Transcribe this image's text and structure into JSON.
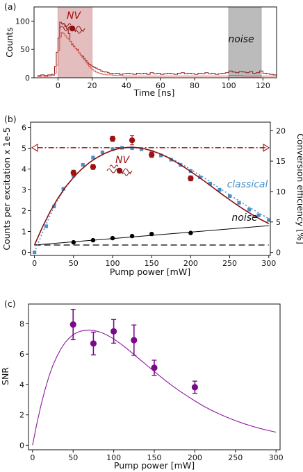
{
  "chart_data": [
    {
      "panel": "(a)",
      "type": "line",
      "xlabel": "Time [ns]",
      "ylabel": "Counts",
      "xlim": [
        -14,
        128
      ],
      "ylim": [
        0,
        125
      ],
      "xticks": [
        0,
        20,
        40,
        60,
        80,
        100,
        120
      ],
      "yticks": [
        0,
        50,
        100
      ],
      "shaded_regions": [
        {
          "label": "NV",
          "x": [
            0,
            20
          ],
          "color": "#d9a3a3"
        },
        {
          "label": "noise",
          "x": [
            100,
            119
          ],
          "color": "#9e9e9e"
        }
      ],
      "series": [
        {
          "color": "#8b1a1a",
          "x": [
            -12,
            -10,
            -8,
            -6,
            -4,
            -2,
            -1,
            0,
            1,
            2,
            3,
            4,
            5,
            6,
            7,
            8,
            9,
            10,
            11,
            12,
            13,
            14,
            15,
            16,
            17,
            18,
            19,
            20,
            21,
            22,
            23,
            24,
            25,
            26,
            27,
            28,
            29,
            30,
            32,
            34,
            36,
            38,
            40,
            42,
            44,
            46,
            48,
            50,
            52,
            54,
            56,
            58,
            60,
            62,
            64,
            66,
            68,
            70,
            72,
            74,
            76,
            78,
            80,
            82,
            84,
            86,
            88,
            90,
            92,
            94,
            96,
            98,
            100,
            102,
            104,
            106,
            108,
            110,
            112,
            114,
            116,
            118,
            120,
            122,
            124,
            126
          ],
          "y": [
            4,
            5,
            4,
            5,
            6,
            20,
            45,
            70,
            98,
            96,
            95,
            90,
            86,
            78,
            64,
            58,
            55,
            52,
            50,
            44,
            40,
            38,
            34,
            30,
            26,
            24,
            22,
            20,
            18,
            17,
            15,
            14,
            12,
            11,
            10,
            10,
            9,
            8,
            7,
            8,
            6,
            7,
            8,
            7,
            6,
            8,
            7,
            8,
            6,
            9,
            7,
            8,
            6,
            7,
            8,
            7,
            6,
            8,
            9,
            7,
            8,
            7,
            6,
            8,
            7,
            9,
            7,
            8,
            6,
            7,
            8,
            9,
            12,
            10,
            9,
            11,
            10,
            9,
            11,
            8,
            9,
            12,
            8,
            7,
            6,
            5
          ]
        },
        {
          "color": "#d9534f",
          "x": [
            -12,
            -10,
            -8,
            -6,
            -4,
            -2,
            -1,
            0,
            1,
            2,
            3,
            4,
            5,
            6,
            7,
            8,
            9,
            10,
            11,
            12,
            13,
            14,
            15,
            16,
            17,
            18,
            19,
            20,
            21,
            22,
            23,
            24,
            25,
            26,
            28,
            30,
            32,
            34,
            36,
            38,
            40,
            44,
            48,
            52,
            56,
            60,
            64,
            68,
            72,
            76,
            80,
            84,
            88,
            92,
            96,
            100,
            104,
            108,
            112,
            116,
            120,
            124
          ],
          "y": [
            2,
            3,
            2,
            3,
            4,
            8,
            22,
            48,
            72,
            80,
            78,
            74,
            70,
            68,
            64,
            60,
            56,
            52,
            48,
            44,
            40,
            36,
            32,
            28,
            24,
            20,
            17,
            14,
            12,
            10,
            9,
            8,
            7,
            6,
            5,
            5,
            4,
            4,
            4,
            3,
            3,
            3,
            3,
            3,
            3,
            3,
            3,
            3,
            3,
            3,
            3,
            3,
            3,
            3,
            3,
            4,
            4,
            3,
            3,
            3,
            3,
            3
          ]
        }
      ],
      "annotations": [
        {
          "text": "NV"
        },
        {
          "text": "noise"
        }
      ]
    },
    {
      "panel": "(b)",
      "type": "scatter",
      "xlabel": "Pump power [mW]",
      "ylabel": "Counts per excitation x 1e-5",
      "ylabel_right": "Conversion efficiency [%]",
      "xlim": [
        -5,
        302
      ],
      "ylim": [
        -0.15,
        6.25
      ],
      "ylim_right": [
        -0.5,
        21.4
      ],
      "xticks": [
        0,
        50,
        100,
        150,
        200,
        250,
        300
      ],
      "yticks": [
        0,
        1,
        2,
        3,
        4,
        5,
        6
      ],
      "yticks_right": [
        0,
        5,
        10,
        15,
        20
      ],
      "series": [
        {
          "name": "NV",
          "marker": "circle",
          "color": "#a01212",
          "x": [
            50,
            75,
            100,
            125,
            150,
            200
          ],
          "y": [
            3.82,
            4.1,
            5.45,
            5.38,
            4.68,
            3.55
          ],
          "err": [
            0.12,
            0.12,
            0.12,
            0.22,
            0.12,
            0.12
          ],
          "fit_y": [
            0.35,
            1.58,
            2.58,
            3.38,
            3.98,
            4.43,
            4.75,
            4.95,
            5.03,
            5.02,
            4.92,
            4.76,
            4.55,
            4.29,
            4.0,
            3.66,
            3.3,
            2.93,
            2.54,
            2.16,
            1.79,
            1.45
          ]
        },
        {
          "name": "classical",
          "marker": "square",
          "color": "#4a90c8",
          "x": [
            0,
            15,
            25,
            37,
            50,
            62,
            75,
            87,
            100,
            112,
            125,
            137,
            150,
            162,
            175,
            187,
            200,
            212,
            225,
            237,
            250,
            262,
            275,
            287,
            300
          ],
          "y": [
            0.0,
            1.25,
            2.2,
            3.05,
            3.68,
            4.2,
            4.55,
            4.8,
            4.95,
            5.02,
            5.0,
            4.95,
            4.82,
            4.65,
            4.45,
            4.2,
            3.9,
            3.6,
            3.3,
            3.0,
            2.7,
            2.38,
            2.05,
            1.78,
            1.55
          ]
        },
        {
          "name": "noise",
          "marker": "circle",
          "color": "#000000",
          "x": [
            50,
            75,
            100,
            125,
            150,
            200
          ],
          "y": [
            0.48,
            0.58,
            0.68,
            0.78,
            0.88,
            0.93
          ],
          "fit_line": {
            "x": [
              0,
              300
            ],
            "y": [
              0.35,
              1.28
            ]
          },
          "flat_line": {
            "x": [
              0,
              300
            ],
            "y": [
              0.35,
              0.35
            ]
          }
        },
        {
          "name": "conversion efficiency",
          "axis": "right",
          "color": "#a01212",
          "x": [
            0,
            300
          ],
          "y": [
            17.2,
            17.2
          ]
        }
      ],
      "fit_x": [
        0,
        10,
        20,
        30,
        40,
        50,
        60,
        70,
        80,
        90,
        100,
        110,
        120,
        130,
        140,
        150,
        160,
        170,
        180,
        190,
        200,
        210,
        220,
        230,
        240,
        250,
        260,
        270,
        280,
        290,
        300
      ],
      "fit_nv_y": [
        0.35,
        1.2,
        1.95,
        2.6,
        3.15,
        3.6,
        3.98,
        4.3,
        4.55,
        4.75,
        4.9,
        5.0,
        5.04,
        5.03,
        4.98,
        4.88,
        4.74,
        4.57,
        4.36,
        4.13,
        3.88,
        3.62,
        3.35,
        3.07,
        2.79,
        2.52,
        2.26,
        2.01,
        1.78,
        1.57,
        1.38
      ],
      "fit_classical_y": [
        0.0,
        0.92,
        1.78,
        2.52,
        3.12,
        3.6,
        3.98,
        4.3,
        4.55,
        4.75,
        4.9,
        4.99,
        5.03,
        5.02,
        4.97,
        4.88,
        4.75,
        4.59,
        4.41,
        4.2,
        3.98,
        3.75,
        3.51,
        3.26,
        3.01,
        2.76,
        2.52,
        2.28,
        2.05,
        1.83,
        1.62
      ],
      "annotations": [
        {
          "text": "NV"
        },
        {
          "text": "classical"
        },
        {
          "text": "noise"
        }
      ]
    },
    {
      "panel": "(c)",
      "type": "scatter",
      "xlabel": "Pump power [mW]",
      "ylabel": "SNR",
      "xlim": [
        -5,
        305
      ],
      "ylim": [
        -0.3,
        9.3
      ],
      "xticks": [
        0,
        50,
        100,
        150,
        200,
        250,
        300
      ],
      "yticks": [
        0,
        2,
        4,
        6,
        8
      ],
      "series": [
        {
          "color": "#7a0a8a",
          "x": [
            50,
            75,
            100,
            125,
            150,
            200
          ],
          "y": [
            7.95,
            6.7,
            7.5,
            6.92,
            5.1,
            3.82
          ],
          "err": [
            1.0,
            0.75,
            0.78,
            1.0,
            0.5,
            0.4
          ]
        }
      ],
      "fit_x": [
        0,
        5,
        10,
        15,
        20,
        25,
        30,
        35,
        40,
        45,
        50,
        55,
        60,
        65,
        70,
        75,
        80,
        85,
        90,
        95,
        100,
        110,
        120,
        130,
        140,
        150,
        160,
        170,
        180,
        190,
        200,
        210,
        220,
        230,
        240,
        250,
        260,
        270,
        280,
        290,
        300
      ],
      "fit_y": [
        0.0,
        1.35,
        2.55,
        3.6,
        4.5,
        5.25,
        5.85,
        6.35,
        6.75,
        7.05,
        7.28,
        7.43,
        7.52,
        7.56,
        7.58,
        7.56,
        7.5,
        7.42,
        7.3,
        7.16,
        7.0,
        6.62,
        6.2,
        5.75,
        5.3,
        4.86,
        4.42,
        4.0,
        3.62,
        3.26,
        2.92,
        2.6,
        2.32,
        2.06,
        1.83,
        1.62,
        1.43,
        1.26,
        1.11,
        0.98,
        0.86
      ]
    }
  ]
}
